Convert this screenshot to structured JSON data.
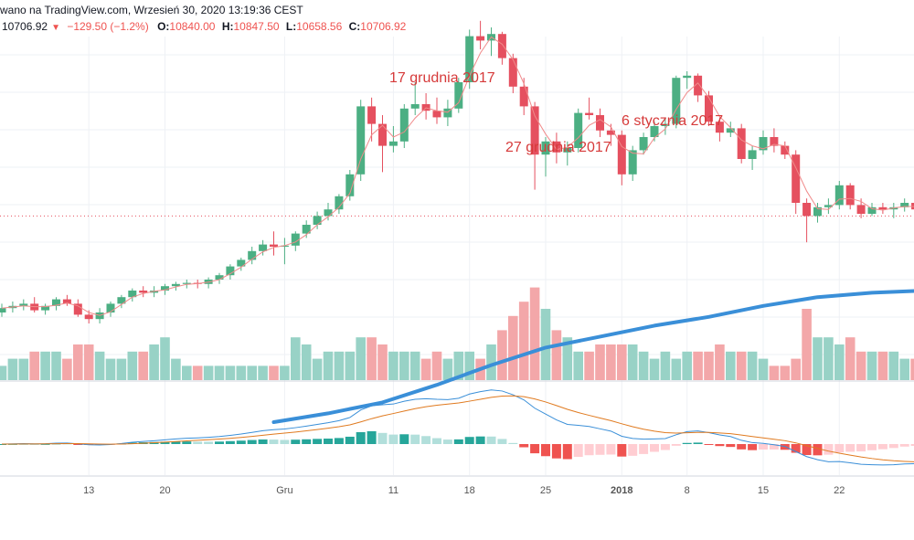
{
  "header": {
    "line1": "wano na TradingView.com, Wrzesień 30, 2020 13:19:36 CEST",
    "price": "10706.92",
    "change": "−129.50 (−1.2%)",
    "o_label": "O:",
    "o_value": "10840.00",
    "h_label": "H:",
    "h_value": "10847.50",
    "l_label": "L:",
    "l_value": "10658.56",
    "c_label": "C:",
    "c_value": "10706.92"
  },
  "annotations": [
    "17 grudnia 2017",
    "27 grudnia 2017",
    "6 stycznia 2017"
  ],
  "colors": {
    "up": "#4caf83",
    "down": "#e5505f",
    "vol_up": "#98d2c6",
    "vol_down": "#f3a7a9",
    "ma": "#3a8fd8",
    "macd": "#3a8fd8",
    "signal": "#e07a1f",
    "hist_up_strong": "#26a69a",
    "hist_up_weak": "#b2dfdb",
    "hist_down_strong": "#ef5350",
    "hist_down_weak": "#ffcdd2",
    "grid": "#eef1f5",
    "annotation": "#d63a3a",
    "axis_text": "#555555"
  },
  "chart_data": {
    "type": "candlestick",
    "x_tick_labels": [
      "13",
      "20",
      "Gru",
      "11",
      "18",
      "25",
      "2018",
      "8",
      "15",
      "22"
    ],
    "candles": [
      {
        "o": 30,
        "h": 34,
        "l": 28,
        "c": 32
      },
      {
        "o": 32,
        "h": 35,
        "l": 30,
        "c": 33
      },
      {
        "o": 33,
        "h": 36,
        "l": 31,
        "c": 34
      },
      {
        "o": 34,
        "h": 37,
        "l": 30,
        "c": 31
      },
      {
        "o": 31,
        "h": 34,
        "l": 29,
        "c": 33
      },
      {
        "o": 33,
        "h": 37,
        "l": 31,
        "c": 36
      },
      {
        "o": 36,
        "h": 38,
        "l": 33,
        "c": 34
      },
      {
        "o": 34,
        "h": 36,
        "l": 28,
        "c": 29
      },
      {
        "o": 29,
        "h": 31,
        "l": 25,
        "c": 27
      },
      {
        "o": 27,
        "h": 32,
        "l": 25,
        "c": 30
      },
      {
        "o": 30,
        "h": 35,
        "l": 28,
        "c": 34
      },
      {
        "o": 34,
        "h": 38,
        "l": 32,
        "c": 37
      },
      {
        "o": 37,
        "h": 41,
        "l": 35,
        "c": 40
      },
      {
        "o": 40,
        "h": 42,
        "l": 37,
        "c": 39
      },
      {
        "o": 39,
        "h": 42,
        "l": 37,
        "c": 40
      },
      {
        "o": 40,
        "h": 43,
        "l": 38,
        "c": 42
      },
      {
        "o": 42,
        "h": 44,
        "l": 40,
        "c": 43
      },
      {
        "o": 43,
        "h": 45,
        "l": 41,
        "c": 43.5
      },
      {
        "o": 43.5,
        "h": 45,
        "l": 41,
        "c": 43
      },
      {
        "o": 43,
        "h": 46,
        "l": 41,
        "c": 45
      },
      {
        "o": 45,
        "h": 48,
        "l": 43,
        "c": 47
      },
      {
        "o": 47,
        "h": 52,
        "l": 45,
        "c": 51
      },
      {
        "o": 51,
        "h": 55,
        "l": 49,
        "c": 54
      },
      {
        "o": 54,
        "h": 60,
        "l": 52,
        "c": 58
      },
      {
        "o": 58,
        "h": 63,
        "l": 56,
        "c": 61
      },
      {
        "o": 61,
        "h": 67,
        "l": 56,
        "c": 60
      },
      {
        "o": 60,
        "h": 64,
        "l": 52,
        "c": 60.5
      },
      {
        "o": 60.5,
        "h": 67,
        "l": 58,
        "c": 66
      },
      {
        "o": 66,
        "h": 72,
        "l": 64,
        "c": 70
      },
      {
        "o": 70,
        "h": 76,
        "l": 68,
        "c": 74
      },
      {
        "o": 74,
        "h": 80,
        "l": 72,
        "c": 77
      },
      {
        "o": 77,
        "h": 84,
        "l": 75,
        "c": 83
      },
      {
        "o": 83,
        "h": 95,
        "l": 81,
        "c": 93
      },
      {
        "o": 93,
        "h": 127,
        "l": 90,
        "c": 124
      },
      {
        "o": 124,
        "h": 128,
        "l": 108,
        "c": 116
      },
      {
        "o": 116,
        "h": 120,
        "l": 94,
        "c": 106
      },
      {
        "o": 106,
        "h": 115,
        "l": 103,
        "c": 108
      },
      {
        "o": 108,
        "h": 125,
        "l": 105,
        "c": 123
      },
      {
        "o": 123,
        "h": 135,
        "l": 120,
        "c": 125
      },
      {
        "o": 125,
        "h": 130,
        "l": 118,
        "c": 122
      },
      {
        "o": 122,
        "h": 128,
        "l": 116,
        "c": 119
      },
      {
        "o": 119,
        "h": 127,
        "l": 115,
        "c": 123
      },
      {
        "o": 123,
        "h": 137,
        "l": 121,
        "c": 135
      },
      {
        "o": 135,
        "h": 159,
        "l": 132,
        "c": 156
      },
      {
        "o": 156,
        "h": 163,
        "l": 150,
        "c": 154
      },
      {
        "o": 154,
        "h": 160,
        "l": 147,
        "c": 157
      },
      {
        "o": 157,
        "h": 158,
        "l": 143,
        "c": 146
      },
      {
        "o": 146,
        "h": 148,
        "l": 130,
        "c": 133
      },
      {
        "o": 133,
        "h": 137,
        "l": 120,
        "c": 124
      },
      {
        "o": 124,
        "h": 126,
        "l": 86,
        "c": 102
      },
      {
        "o": 102,
        "h": 110,
        "l": 92,
        "c": 108
      },
      {
        "o": 108,
        "h": 112,
        "l": 98,
        "c": 103
      },
      {
        "o": 103,
        "h": 108,
        "l": 97,
        "c": 105
      },
      {
        "o": 105,
        "h": 123,
        "l": 103,
        "c": 121
      },
      {
        "o": 121,
        "h": 128,
        "l": 118,
        "c": 120
      },
      {
        "o": 120,
        "h": 123,
        "l": 110,
        "c": 113
      },
      {
        "o": 113,
        "h": 116,
        "l": 106,
        "c": 111
      },
      {
        "o": 111,
        "h": 113,
        "l": 88,
        "c": 93
      },
      {
        "o": 93,
        "h": 106,
        "l": 90,
        "c": 104
      },
      {
        "o": 104,
        "h": 112,
        "l": 102,
        "c": 110
      },
      {
        "o": 110,
        "h": 117,
        "l": 108,
        "c": 115
      },
      {
        "o": 115,
        "h": 119,
        "l": 111,
        "c": 116
      },
      {
        "o": 116,
        "h": 138,
        "l": 114,
        "c": 137
      },
      {
        "o": 137,
        "h": 140,
        "l": 132,
        "c": 138
      },
      {
        "o": 138,
        "h": 139,
        "l": 126,
        "c": 129
      },
      {
        "o": 129,
        "h": 131,
        "l": 115,
        "c": 117
      },
      {
        "o": 117,
        "h": 119,
        "l": 108,
        "c": 112
      },
      {
        "o": 112,
        "h": 117,
        "l": 110,
        "c": 114
      },
      {
        "o": 114,
        "h": 116,
        "l": 98,
        "c": 100
      },
      {
        "o": 100,
        "h": 106,
        "l": 95,
        "c": 104
      },
      {
        "o": 104,
        "h": 113,
        "l": 102,
        "c": 110
      },
      {
        "o": 110,
        "h": 114,
        "l": 103,
        "c": 106
      },
      {
        "o": 106,
        "h": 108,
        "l": 100,
        "c": 102
      },
      {
        "o": 102,
        "h": 104,
        "l": 75,
        "c": 80
      },
      {
        "o": 80,
        "h": 82,
        "l": 62,
        "c": 74
      },
      {
        "o": 74,
        "h": 80,
        "l": 71,
        "c": 78
      },
      {
        "o": 78,
        "h": 82,
        "l": 75,
        "c": 79
      },
      {
        "o": 79,
        "h": 90,
        "l": 77,
        "c": 88
      },
      {
        "o": 88,
        "h": 89,
        "l": 77,
        "c": 79
      },
      {
        "o": 79,
        "h": 82,
        "l": 73,
        "c": 75
      },
      {
        "o": 75,
        "h": 80,
        "l": 74,
        "c": 78
      },
      {
        "o": 78,
        "h": 80,
        "l": 75,
        "c": 77
      },
      {
        "o": 77,
        "h": 80,
        "l": 73,
        "c": 78
      },
      {
        "o": 78,
        "h": 82,
        "l": 76,
        "c": 80
      },
      {
        "o": 80,
        "h": 82,
        "l": 75,
        "c": 77
      },
      {
        "o": 77,
        "h": 79,
        "l": 72,
        "c": 74
      }
    ],
    "moving_average": [
      {
        "i": 25,
        "v": -20
      },
      {
        "i": 30,
        "v": -16
      },
      {
        "i": 35,
        "v": -11
      },
      {
        "i": 40,
        "v": -3
      },
      {
        "i": 45,
        "v": 6
      },
      {
        "i": 50,
        "v": 14
      },
      {
        "i": 55,
        "v": 19
      },
      {
        "i": 60,
        "v": 24
      },
      {
        "i": 65,
        "v": 28
      },
      {
        "i": 70,
        "v": 33
      },
      {
        "i": 75,
        "v": 37
      },
      {
        "i": 80,
        "v": 39
      },
      {
        "i": 85,
        "v": 40
      }
    ],
    "volume": [
      2,
      3,
      3,
      4,
      4,
      4,
      3,
      5,
      5,
      4,
      3,
      3,
      4,
      4,
      5,
      6,
      3,
      2,
      2,
      2,
      2,
      2,
      2,
      2,
      2,
      2,
      2,
      6,
      5,
      3,
      4,
      4,
      4,
      6,
      6,
      5,
      4,
      4,
      4,
      3,
      4,
      3,
      4,
      4,
      3,
      5,
      7,
      9,
      11,
      13,
      10,
      7,
      6,
      4,
      4,
      5,
      5,
      5,
      5,
      4,
      3,
      4,
      3,
      4,
      4,
      4,
      5,
      4,
      4,
      4,
      3,
      2,
      2,
      3,
      10,
      6,
      6,
      5,
      6,
      4,
      4,
      4,
      4,
      3,
      3,
      3
    ]
  }
}
